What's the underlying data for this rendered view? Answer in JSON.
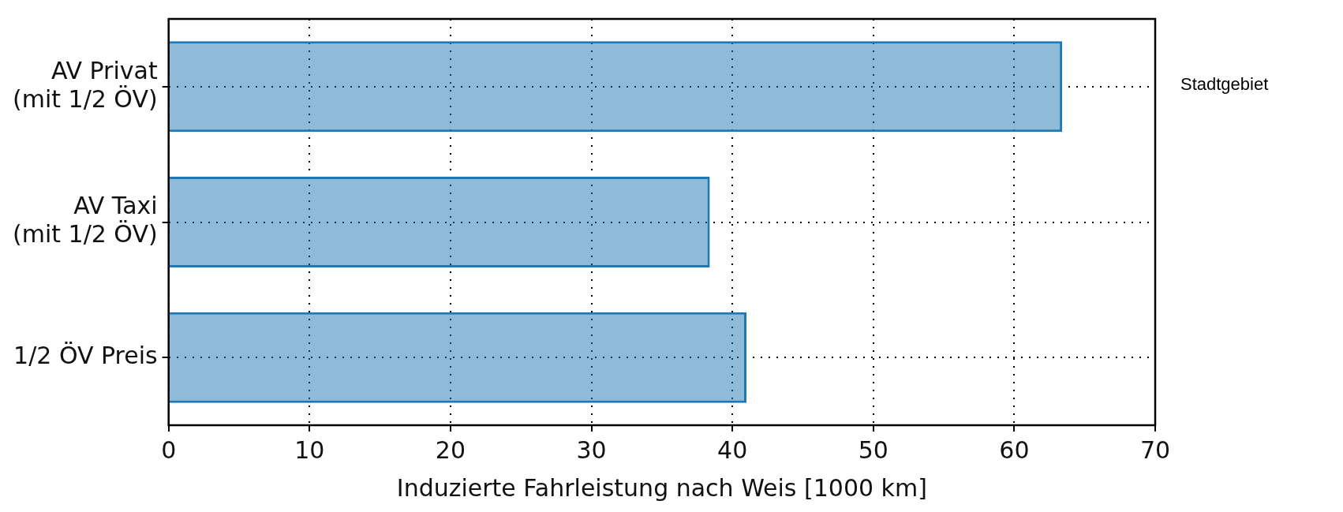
{
  "chart_data": {
    "type": "bar",
    "orientation": "horizontal",
    "categories": [
      "AV Privat\n(mit 1/2 ÖV)",
      "AV Taxi\n(mit 1/2 ÖV)",
      "1/2 ÖV Preis"
    ],
    "values": [
      63.4,
      38.4,
      41.0
    ],
    "color": "#1f77b4",
    "xlim": [
      0,
      70
    ],
    "xticks": [
      0,
      10,
      20,
      30,
      40,
      50,
      60,
      70
    ],
    "xlabel": "Induzierte Fahrleistung nach Weis [1000 km]",
    "annotations": [
      "Stadtgebiet"
    ],
    "grid": true,
    "legend": false
  }
}
